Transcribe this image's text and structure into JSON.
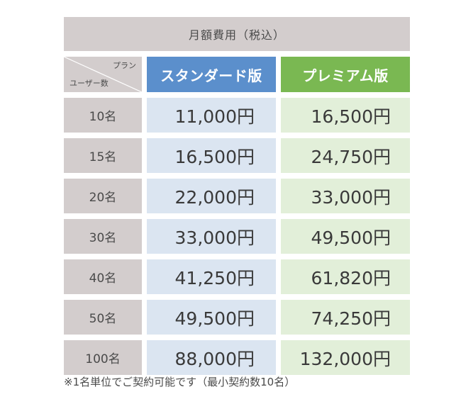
{
  "table": {
    "title": "月額費用（税込）",
    "corner": {
      "plan_label": "プラン",
      "users_label": "ユーザー数"
    },
    "plans": {
      "standard": "スタンダード版",
      "premium": "プレミアム版"
    },
    "rows": [
      {
        "users": "10名",
        "standard": "11,000円",
        "premium": "16,500円"
      },
      {
        "users": "15名",
        "standard": "16,500円",
        "premium": "24,750円"
      },
      {
        "users": "20名",
        "standard": "22,000円",
        "premium": "33,000円"
      },
      {
        "users": "30名",
        "standard": "33,000円",
        "premium": "49,500円"
      },
      {
        "users": "40名",
        "standard": "41,250円",
        "premium": "61,820円"
      },
      {
        "users": "50名",
        "standard": "49,500円",
        "premium": "74,250円"
      },
      {
        "users": "100名",
        "standard": "88,000円",
        "premium": "132,000円"
      }
    ]
  },
  "note": "※1名単位でご契約可能です（最小契約数10名）",
  "colors": {
    "header_gray": "#d3cdcd",
    "standard_blue": "#5b8fcc",
    "standard_light": "#dbe5f1",
    "premium_green": "#7ab852",
    "premium_light": "#e2efd9"
  }
}
